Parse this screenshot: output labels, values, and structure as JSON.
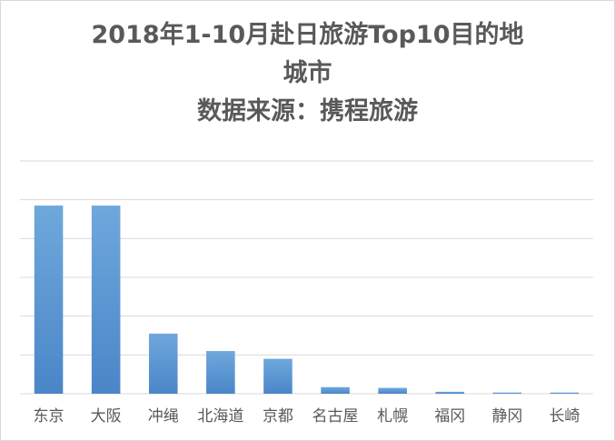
{
  "chart_data": {
    "type": "bar",
    "title_lines": [
      "2018年1-10月赴日旅游Top10目的地",
      "城市",
      "数据来源：携程旅游"
    ],
    "categories": [
      "东京",
      "大阪",
      "冲绳",
      "北海道",
      "京都",
      "名古屋",
      "札幌",
      "福冈",
      "静冈",
      "长崎"
    ],
    "values": [
      4.85,
      4.85,
      1.55,
      1.1,
      0.9,
      0.17,
      0.15,
      0.05,
      0.03,
      0.03
    ],
    "ylim": [
      0,
      6
    ],
    "grid": true,
    "legend": "none",
    "bar_color_top": "#6fa8dc",
    "bar_color_bottom": "#4a86c8",
    "gridline_color": "#d9d9d9",
    "text_color": "#595959"
  }
}
